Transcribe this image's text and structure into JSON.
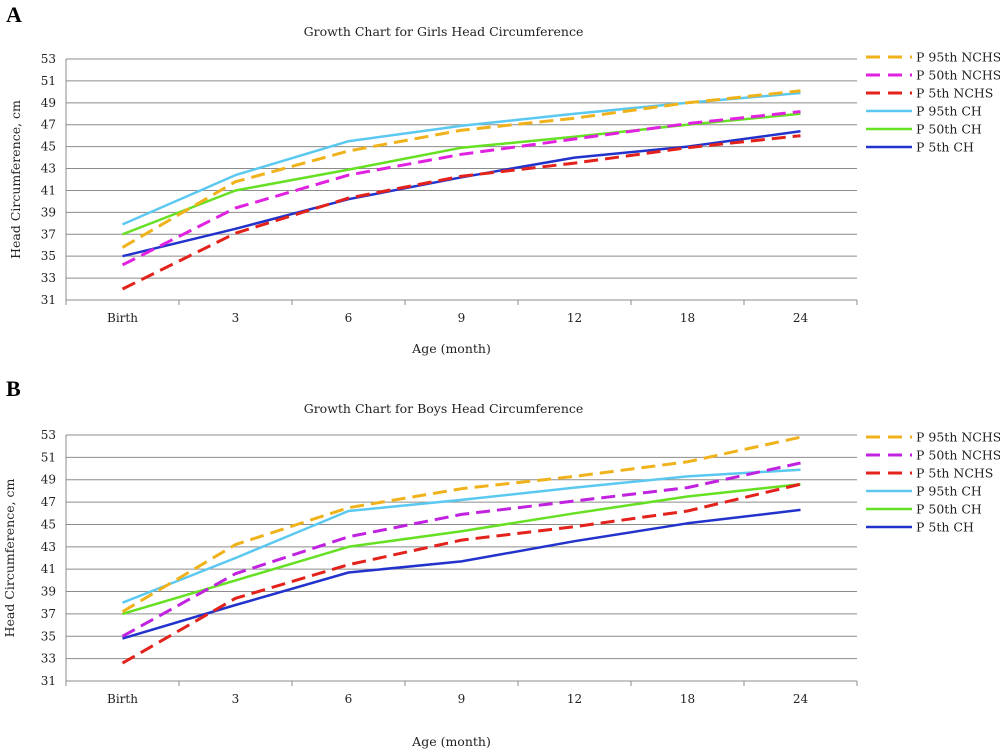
{
  "chart_data": [
    {
      "panel": "A",
      "type": "line",
      "title": "Growth Chart for Girls Head Circumference",
      "xlabel": "Age (month)",
      "ylabel": "Head Circumference, cm",
      "categories": [
        "Birth",
        "3",
        "6",
        "9",
        "12",
        "18",
        "24"
      ],
      "ylim": [
        31,
        53
      ],
      "yticks": [
        31,
        33,
        35,
        37,
        39,
        41,
        43,
        45,
        47,
        49,
        51,
        53
      ],
      "grid": true,
      "legend_position": "right",
      "series": [
        {
          "name": "P 95th NCHS",
          "color": "#f0b21a",
          "dashed": true,
          "values": [
            35.8,
            41.8,
            44.6,
            46.5,
            47.6,
            49.0,
            50.1
          ]
        },
        {
          "name": "P 50th NCHS",
          "color": "#e022e0",
          "dashed": true,
          "values": [
            34.2,
            39.4,
            42.4,
            44.3,
            45.7,
            47.1,
            48.2
          ]
        },
        {
          "name": "P 5th NCHS",
          "color": "#e3221c",
          "dashed": true,
          "values": [
            32.0,
            37.1,
            40.3,
            42.3,
            43.5,
            44.9,
            46.0
          ]
        },
        {
          "name": "P 95th CH",
          "color": "#5bc8f0",
          "dashed": false,
          "values": [
            37.9,
            42.4,
            45.5,
            46.9,
            48.0,
            49.0,
            49.9
          ]
        },
        {
          "name": "P 50th CH",
          "color": "#66e022",
          "dashed": false,
          "values": [
            37.0,
            41.0,
            42.9,
            44.9,
            45.9,
            47.0,
            48.0
          ]
        },
        {
          "name": "P 5th CH",
          "color": "#2233cc",
          "dashed": false,
          "values": [
            35.0,
            37.5,
            40.2,
            42.2,
            44.0,
            45.0,
            46.4
          ]
        }
      ]
    },
    {
      "panel": "B",
      "type": "line",
      "title": "Growth Chart for Boys Head Circumference",
      "xlabel": "Age (month)",
      "ylabel": "Head Circumference, cm",
      "categories": [
        "Birth",
        "3",
        "6",
        "9",
        "12",
        "18",
        "24"
      ],
      "ylim": [
        31,
        53
      ],
      "yticks": [
        31,
        33,
        35,
        37,
        39,
        41,
        43,
        45,
        47,
        49,
        51,
        53
      ],
      "grid": true,
      "legend_position": "right",
      "series": [
        {
          "name": "P 95th NCHS",
          "color": "#f0b21a",
          "dashed": true,
          "values": [
            37.2,
            43.2,
            46.5,
            48.2,
            49.3,
            50.6,
            52.8
          ]
        },
        {
          "name": "P 50th NCHS",
          "color": "#c022e0",
          "dashed": true,
          "values": [
            35.0,
            40.6,
            43.9,
            45.9,
            47.1,
            48.3,
            50.5
          ]
        },
        {
          "name": "P 5th NCHS",
          "color": "#e3221c",
          "dashed": true,
          "values": [
            32.6,
            38.4,
            41.4,
            43.6,
            44.8,
            46.2,
            48.6
          ]
        },
        {
          "name": "P 95th CH",
          "color": "#5bc8f0",
          "dashed": false,
          "values": [
            38.0,
            42.0,
            46.2,
            47.2,
            48.3,
            49.3,
            49.9
          ]
        },
        {
          "name": "P 50th CH",
          "color": "#66e022",
          "dashed": false,
          "values": [
            37.0,
            40.0,
            43.0,
            44.4,
            46.0,
            47.5,
            48.6
          ]
        },
        {
          "name": "P 5th CH",
          "color": "#2233cc",
          "dashed": false,
          "values": [
            34.8,
            37.8,
            40.7,
            41.7,
            43.5,
            45.1,
            46.3
          ]
        }
      ]
    }
  ]
}
